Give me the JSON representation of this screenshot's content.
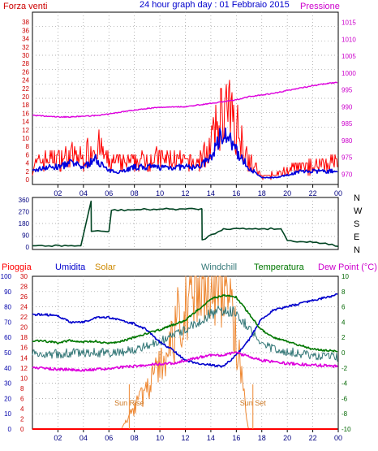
{
  "title": "24 hour graph day : 01 Febbraio 2015",
  "x_ticks": [
    "02",
    "04",
    "06",
    "08",
    "10",
    "12",
    "14",
    "16",
    "18",
    "20",
    "22",
    "00"
  ],
  "wind_panel": {
    "left_label": "Forza venti",
    "right_label": "Pressione",
    "left_ticks": [
      "0",
      "2",
      "4",
      "6",
      "8",
      "10",
      "12",
      "14",
      "16",
      "18",
      "20",
      "22",
      "24",
      "26",
      "28",
      "30",
      "32",
      "34",
      "36",
      "38"
    ],
    "right_ticks": [
      "970",
      "975",
      "980",
      "985",
      "990",
      "995",
      "1000",
      "1005",
      "1010",
      "1015"
    ],
    "colors": {
      "gust": "#ff0000",
      "speed": "#0000dd",
      "pressure": "#dd00dd",
      "left_axis": "#cc0000",
      "right_axis": "#cc00cc"
    }
  },
  "dir_panel": {
    "left_ticks": [
      "0",
      "90",
      "180",
      "270",
      "360"
    ],
    "compass": [
      "N",
      "W",
      "S",
      "E",
      "N"
    ],
    "colors": {
      "direction": "#004422"
    }
  },
  "weather_panel": {
    "labels": {
      "rain": "Pioggia",
      "humidity": "Umidita",
      "solar": "Solar",
      "windchill": "Windchill",
      "temperature": "Temperatura",
      "dewpoint": "Dew Point (°C)"
    },
    "left_ticks_rain": [
      "0",
      "2",
      "4",
      "6",
      "8",
      "10",
      "12",
      "14",
      "16",
      "18",
      "20",
      "22",
      "24",
      "26",
      "28",
      "30"
    ],
    "left_ticks_hum": [
      "0",
      "10",
      "20",
      "30",
      "40",
      "50",
      "60",
      "70",
      "80",
      "90",
      "100"
    ],
    "right_ticks": [
      "-10",
      "-8",
      "-6",
      "-4",
      "-2",
      "0",
      "2",
      "4",
      "6",
      "8",
      "10"
    ],
    "annotations": {
      "sunrise": "Sun Rise",
      "sunset": "Sun Set"
    },
    "colors": {
      "rain": "#ff0000",
      "humidity": "#0000cc",
      "solar": "#ee8833",
      "windchill": "#337777",
      "temperature": "#007700",
      "dewpoint": "#dd00dd"
    }
  },
  "chart_data": [
    {
      "type": "line",
      "title": "24 hour graph day : 01 Febbraio 2015",
      "xlabel": "",
      "ylabel": "Forza venti",
      "y2label": "Pressione",
      "x_hours": [
        0,
        1,
        2,
        3,
        4,
        5,
        6,
        7,
        8,
        9,
        10,
        11,
        12,
        13,
        14,
        15,
        16,
        17,
        18,
        19,
        20,
        21,
        22,
        23,
        24
      ],
      "ylim": [
        0,
        40
      ],
      "y2lim": [
        967,
        1018
      ],
      "series": [
        {
          "name": "gust",
          "axis": "left",
          "values": [
            3,
            5,
            5,
            6,
            5,
            9,
            4,
            4,
            4,
            5,
            5,
            5,
            4,
            4,
            8,
            17,
            14,
            5,
            1,
            1,
            2,
            3,
            3,
            4,
            4
          ]
        },
        {
          "name": "speed",
          "axis": "left",
          "values": [
            2,
            3,
            3,
            4,
            3,
            5,
            2,
            2,
            3,
            3,
            3,
            3,
            3,
            3,
            5,
            12,
            7,
            3,
            0.5,
            0.5,
            1,
            2,
            2,
            2,
            2
          ]
        },
        {
          "name": "Pressione",
          "axis": "right",
          "values": [
            987.5,
            987.2,
            987,
            987,
            987.2,
            987.4,
            987.8,
            988.5,
            989,
            989.5,
            989.8,
            990,
            990,
            990.5,
            991,
            991.5,
            992,
            993,
            993.5,
            994,
            994.8,
            995.5,
            996.2,
            996.8,
            997.2
          ]
        }
      ]
    },
    {
      "type": "line",
      "x_hours": [
        0,
        3.8,
        4.6,
        4.62,
        6,
        6.2,
        10,
        12,
        13.3,
        13.32,
        15,
        17,
        18.2,
        19.5,
        20,
        23,
        24
      ],
      "ylim": [
        0,
        360
      ],
      "series": [
        {
          "name": "direction",
          "values": [
            10,
            10,
            350,
            120,
            120,
            280,
            290,
            290,
            290,
            55,
            140,
            140,
            140,
            140,
            50,
            30,
            5
          ]
        }
      ]
    },
    {
      "type": "line",
      "x_hours": [
        0,
        1,
        2,
        3,
        4,
        5,
        6,
        7,
        8,
        9,
        10,
        11,
        12,
        13,
        14,
        15,
        16,
        17,
        18,
        19,
        20,
        21,
        22,
        23,
        24
      ],
      "series": [
        {
          "name": "Umidita",
          "axis": "humidity",
          "ylim": [
            0,
            100
          ],
          "values": [
            75,
            75,
            74,
            70,
            70,
            73,
            73,
            71,
            69,
            65,
            57,
            52,
            45,
            43,
            42,
            41,
            48,
            58,
            72,
            78,
            80,
            82,
            84,
            86,
            88
          ]
        },
        {
          "name": "Temperatura",
          "axis": "right",
          "ylim": [
            -10,
            10
          ],
          "values": [
            1.6,
            1.5,
            1.3,
            1.6,
            1.4,
            1.5,
            1.2,
            1.5,
            2.0,
            2.5,
            3.0,
            3.6,
            4.2,
            5.6,
            7.0,
            7.5,
            7.3,
            5.2,
            3.0,
            2.0,
            1.5,
            1.0,
            0.5,
            0.3,
            0.2
          ]
        },
        {
          "name": "Windchill",
          "axis": "right",
          "ylim": [
            -10,
            10
          ],
          "values": [
            0.5,
            0.5,
            0.4,
            0.6,
            0.6,
            0.6,
            0.6,
            0.7,
            0.9,
            1.4,
            2.0,
            2.8,
            3.6,
            4.6,
            5.8,
            6.4,
            6.0,
            4.0,
            1.8,
            1.0,
            0.8,
            0.5,
            0.3,
            0.1,
            0.0
          ]
        },
        {
          "name": "Dew Point (°C)",
          "axis": "right",
          "ylim": [
            -10,
            10
          ],
          "values": [
            -2.0,
            -2.0,
            -2.2,
            -2.2,
            -2.3,
            -2.2,
            -2.1,
            -1.9,
            -1.8,
            -1.6,
            -1.5,
            -1.4,
            -1.0,
            -0.7,
            -0.3,
            -0.3,
            0.0,
            -0.5,
            -1.0,
            -1.2,
            -1.4,
            -1.5,
            -1.6,
            -1.7,
            -1.8
          ]
        },
        {
          "name": "Solar",
          "axis": "rain",
          "ylim": [
            0,
            30
          ],
          "values": [
            0,
            0,
            0,
            0,
            0,
            0,
            0,
            0,
            4,
            8,
            12,
            18,
            26,
            28,
            30,
            28,
            18,
            0,
            0,
            0,
            0,
            0,
            0,
            0,
            0
          ]
        },
        {
          "name": "Pioggia",
          "axis": "rain",
          "ylim": [
            0,
            30
          ],
          "values": [
            0,
            0,
            0,
            0,
            0,
            0,
            0,
            0,
            0,
            0,
            0,
            0,
            0,
            0,
            0,
            0,
            0,
            0,
            0,
            0,
            0,
            0,
            0,
            0,
            0
          ]
        }
      ],
      "markers": [
        {
          "label": "Sun Rise",
          "x_hour": 7.6
        },
        {
          "label": "Sun Set",
          "x_hour": 17.3
        }
      ]
    }
  ]
}
